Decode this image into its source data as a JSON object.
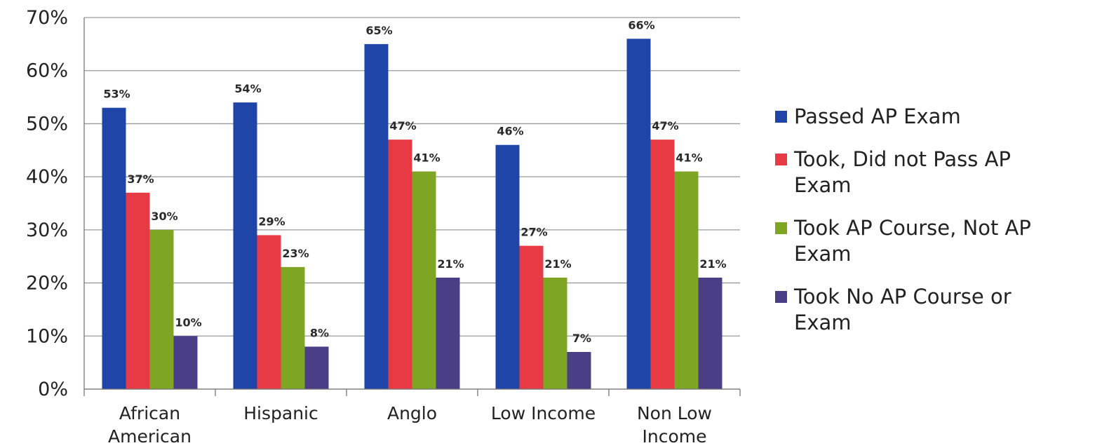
{
  "chart_data": {
    "type": "bar",
    "title": "",
    "xlabel": "",
    "ylabel": "",
    "ylim": [
      0,
      70
    ],
    "yticks": [
      "0%",
      "10%",
      "20%",
      "30%",
      "40%",
      "50%",
      "60%",
      "70%"
    ],
    "categories": [
      [
        "African",
        "American"
      ],
      [
        "Hispanic"
      ],
      [
        "Anglo"
      ],
      [
        "Low Income"
      ],
      [
        "Non Low",
        "Income"
      ]
    ],
    "series": [
      {
        "name": "Passed AP Exam",
        "color": "#1f45a8",
        "values": [
          53,
          54,
          65,
          46,
          66
        ]
      },
      {
        "name": "Took, Did not Pass AP Exam",
        "color": "#e83a44",
        "values": [
          37,
          29,
          47,
          27,
          47
        ]
      },
      {
        "name": "Took AP Course, Not AP Exam",
        "color": "#7ea524",
        "values": [
          30,
          23,
          41,
          21,
          41
        ]
      },
      {
        "name": "Took No AP Course or Exam",
        "color": "#4a3f86",
        "values": [
          10,
          8,
          21,
          7,
          21
        ]
      }
    ],
    "data_labels": [
      [
        "53%",
        "37%",
        "30%",
        "10%"
      ],
      [
        "54%",
        "29%",
        "23%",
        "8%"
      ],
      [
        "65%",
        "47%",
        "41%",
        "21%"
      ],
      [
        "46%",
        "27%",
        "21%",
        "7%"
      ],
      [
        "66%",
        "47%",
        "41%",
        "21%"
      ]
    ],
    "grid": true,
    "legend_position": "right"
  },
  "legend": {
    "items": [
      {
        "lines": [
          "Passed AP Exam"
        ],
        "color": "#1f45a8",
        "icon": "square-swatch"
      },
      {
        "lines": [
          "Took, Did not Pass AP",
          "Exam"
        ],
        "color": "#e83a44",
        "icon": "square-swatch"
      },
      {
        "lines": [
          "Took AP Course, Not AP",
          "Exam"
        ],
        "color": "#7ea524",
        "icon": "square-swatch"
      },
      {
        "lines": [
          "Took No AP Course or",
          "Exam"
        ],
        "color": "#4a3f86",
        "icon": "square-swatch"
      }
    ]
  }
}
